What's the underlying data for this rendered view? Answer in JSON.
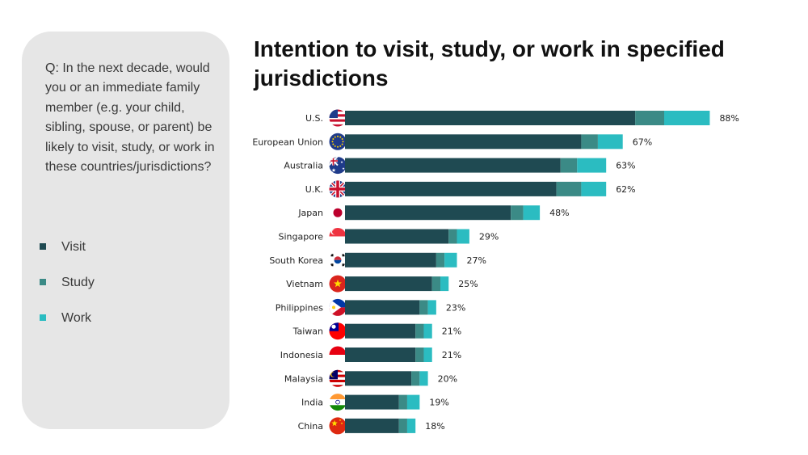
{
  "panel": {
    "question": "Q: In the next decade, would you or an immediate family member (e.g. your child, sibling, spouse, or parent) be likely to visit, study, or work in these countries/jurisdictions?"
  },
  "legend": [
    {
      "label": "Visit",
      "color": "#1f4a52"
    },
    {
      "label": "Study",
      "color": "#3b8a86"
    },
    {
      "label": "Work",
      "color": "#2bbcc1"
    }
  ],
  "chart_data": {
    "type": "bar",
    "orientation": "horizontal",
    "stacked": true,
    "title": "Intention to visit, study, or work in specified jurisdictions",
    "unit": "%",
    "xlim": [
      0,
      88
    ],
    "categories": [
      "U.S.",
      "European Union",
      "Australia",
      "U.K.",
      "Japan",
      "Singapore",
      "South Korea",
      "Vietnam",
      "Philippines",
      "Taiwan",
      "Indonesia",
      "Malaysia",
      "India",
      "China"
    ],
    "flags": [
      "flag-us-icon",
      "flag-eu-icon",
      "flag-australia-icon",
      "flag-uk-icon",
      "flag-japan-icon",
      "flag-singapore-icon",
      "flag-south-korea-icon",
      "flag-vietnam-icon",
      "flag-philippines-icon",
      "flag-taiwan-icon",
      "flag-indonesia-icon",
      "flag-malaysia-icon",
      "flag-india-icon",
      "flag-china-icon"
    ],
    "series": [
      {
        "name": "Visit",
        "color": "#1f4a52",
        "values": [
          70,
          57,
          52,
          51,
          40,
          25,
          22,
          21,
          18,
          17,
          17,
          16,
          13,
          13
        ]
      },
      {
        "name": "Study",
        "color": "#3b8a86",
        "values": [
          7,
          4,
          4,
          6,
          3,
          2,
          2,
          2,
          2,
          2,
          2,
          2,
          2,
          2
        ]
      },
      {
        "name": "Work",
        "color": "#2bbcc1",
        "values": [
          11,
          6,
          7,
          6,
          4,
          3,
          3,
          2,
          2,
          2,
          2,
          2,
          3,
          2
        ]
      }
    ],
    "totals": [
      "88%",
      "67%",
      "63%",
      "62%",
      "48%",
      "29%",
      "27%",
      "25%",
      "23%",
      "21%",
      "21%",
      "20%",
      "19%",
      "18%"
    ]
  }
}
